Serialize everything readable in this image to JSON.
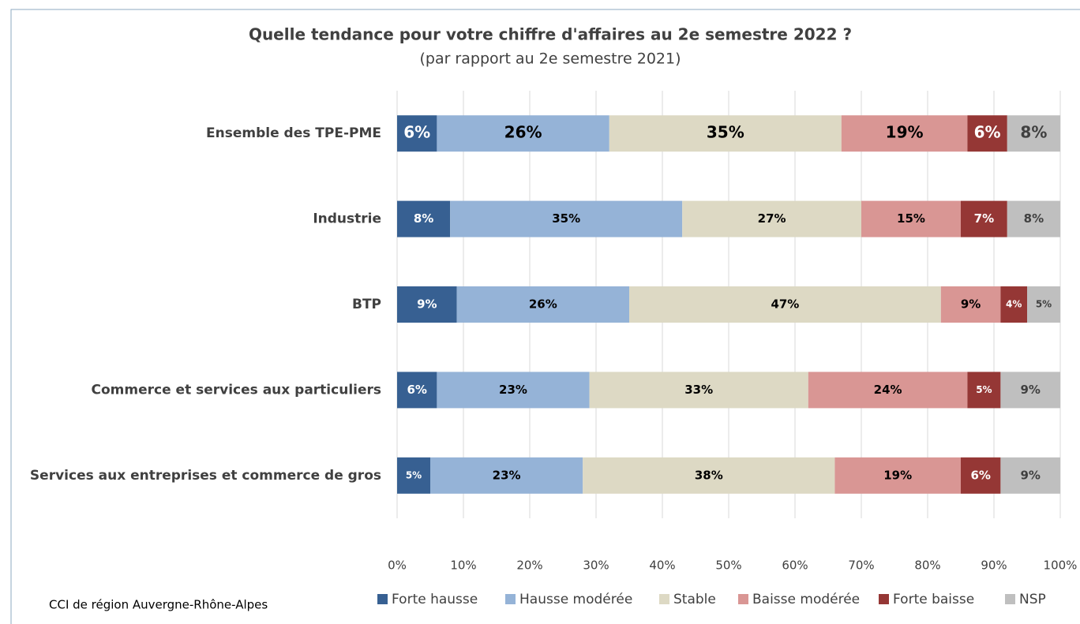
{
  "chart_data": {
    "type": "stacked_barh",
    "title": "Quelle tendance pour votre chiffre d'affaires au 2e semestre 2022 ?",
    "subtitle": "(par rapport au 2e semestre 2021)",
    "source": "CCI de région Auvergne-Rhône-Alpes",
    "categories": [
      "Ensemble des TPE-PME",
      "Industrie",
      "BTP",
      "Commerce et services aux particuliers",
      "Services aux entreprises et commerce de gros"
    ],
    "series": [
      {
        "name": "Forte hausse",
        "color": "#376092",
        "values": [
          6,
          8,
          9,
          6,
          5
        ],
        "value_labels": [
          "6%",
          "8%",
          "9%",
          "6%",
          "5%"
        ]
      },
      {
        "name": "Hausse modérée",
        "color": "#95b3d7",
        "values": [
          26,
          35,
          26,
          23,
          23
        ],
        "value_labels": [
          "26%",
          "35%",
          "26%",
          "23%",
          "23%"
        ]
      },
      {
        "name": "Stable",
        "color": "#ddd9c4",
        "values": [
          35,
          27,
          47,
          33,
          38
        ],
        "value_labels": [
          "35%",
          "27%",
          "47%",
          "33%",
          "38%"
        ]
      },
      {
        "name": "Baisse modérée",
        "color": "#d99694",
        "values": [
          19,
          15,
          9,
          24,
          19
        ],
        "value_labels": [
          "19%",
          "15%",
          "9%",
          "24%",
          "19%"
        ]
      },
      {
        "name": "Forte baisse",
        "color": "#953735",
        "values": [
          6,
          7,
          4,
          5,
          6
        ],
        "value_labels": [
          "6%",
          "7%",
          "4%",
          "5%",
          "6%"
        ]
      },
      {
        "name": "NSP",
        "color": "#bfbfbf",
        "values": [
          8,
          8,
          5,
          9,
          9
        ],
        "value_labels": [
          "8%",
          "8%",
          "5%",
          "9%",
          "9%"
        ]
      }
    ],
    "xlim": [
      0,
      100
    ],
    "xticks": [
      {
        "value": 0,
        "label": "0%"
      },
      {
        "value": 10,
        "label": "10%"
      },
      {
        "value": 20,
        "label": "20%"
      },
      {
        "value": 30,
        "label": "30%"
      },
      {
        "value": 40,
        "label": "40%"
      },
      {
        "value": 50,
        "label": "50%"
      },
      {
        "value": 60,
        "label": "60%"
      },
      {
        "value": 70,
        "label": "70%"
      },
      {
        "value": 80,
        "label": "80%"
      },
      {
        "value": 90,
        "label": "90%"
      },
      {
        "value": 100,
        "label": "100%"
      }
    ],
    "grid": true,
    "legend": "bottom"
  }
}
